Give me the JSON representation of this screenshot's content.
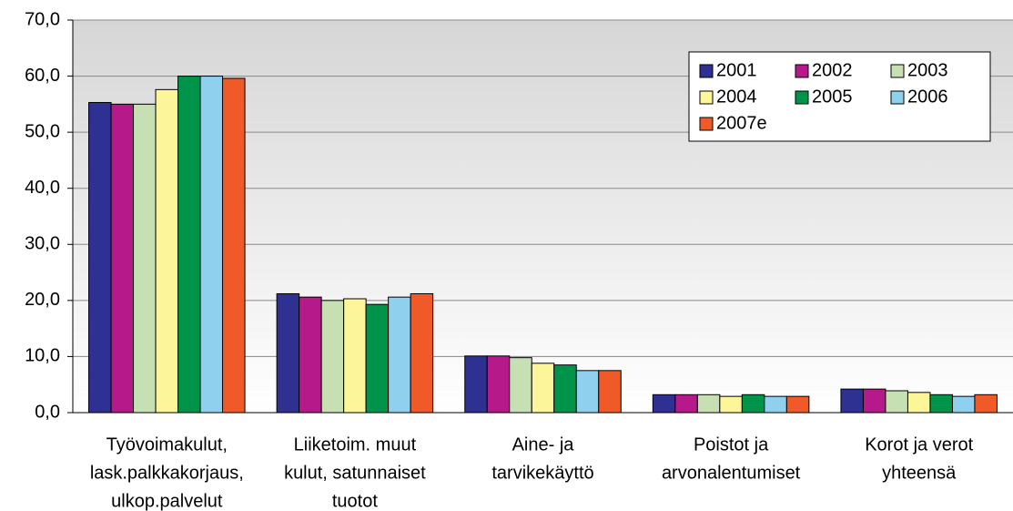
{
  "chart_data": {
    "type": "bar",
    "categories": [
      [
        "Työvoimakulut,",
        "lask.palkkakorjaus,",
        "ulkop.palvelut"
      ],
      [
        "Liiketoim. muut",
        "kulut, satunnaiset",
        "tuotot"
      ],
      [
        "Aine- ja",
        "tarvikekäyttö"
      ],
      [
        "Poistot ja",
        "arvonalentumiset"
      ],
      [
        "Korot ja verot",
        "yhteensä"
      ]
    ],
    "series": [
      {
        "name": "2001",
        "color": "#2e3192",
        "values": [
          55.3,
          21.2,
          10.1,
          3.2,
          4.2
        ]
      },
      {
        "name": "2002",
        "color": "#b5198a",
        "values": [
          55.0,
          20.6,
          10.1,
          3.2,
          4.2
        ]
      },
      {
        "name": "2003",
        "color": "#c6e0b4",
        "values": [
          55.0,
          20.0,
          9.8,
          3.2,
          3.9
        ]
      },
      {
        "name": "2004",
        "color": "#fdf59a",
        "values": [
          57.6,
          20.3,
          8.8,
          2.9,
          3.6
        ]
      },
      {
        "name": "2005",
        "color": "#00944a",
        "values": [
          60.0,
          19.3,
          8.5,
          3.2,
          3.2
        ]
      },
      {
        "name": "2006",
        "color": "#8fd0ef",
        "values": [
          60.0,
          20.6,
          7.5,
          2.9,
          2.9
        ]
      },
      {
        "name": "2007e",
        "color": "#f05a28",
        "values": [
          59.6,
          21.2,
          7.5,
          2.9,
          3.2
        ]
      }
    ],
    "ylim": [
      0,
      70
    ],
    "yticks": [
      {
        "value": 0,
        "label": "0,0"
      },
      {
        "value": 10,
        "label": "10,0"
      },
      {
        "value": 20,
        "label": "20,0"
      },
      {
        "value": 30,
        "label": "30,0"
      },
      {
        "value": 40,
        "label": "40,0"
      },
      {
        "value": 50,
        "label": "50,0"
      },
      {
        "value": 60,
        "label": "60,0"
      },
      {
        "value": 70,
        "label": "70,0"
      }
    ],
    "grid": true,
    "legend": "upper right"
  }
}
